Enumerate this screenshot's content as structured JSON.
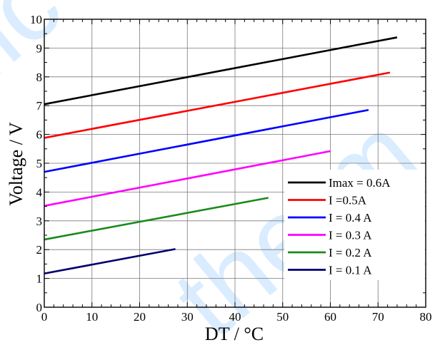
{
  "chart_data": {
    "type": "line",
    "xlabel": "DT / °C",
    "ylabel": "Voltage / V",
    "xlim": [
      0,
      80
    ],
    "ylim": [
      0,
      10
    ],
    "x_ticks": [
      "0",
      "10",
      "20",
      "30",
      "40",
      "50",
      "60",
      "70",
      "80"
    ],
    "y_ticks": [
      "0",
      "1",
      "2",
      "3",
      "4",
      "5",
      "6",
      "7",
      "8",
      "9",
      "10"
    ],
    "grid": true,
    "legend_position": "bottom-right",
    "series": [
      {
        "name": "Imax = 0.6A",
        "color": "#000000",
        "x": [
          0,
          74
        ],
        "y": [
          7.05,
          9.37
        ]
      },
      {
        "name": "I =0.5A",
        "color": "#ff0000",
        "x": [
          0,
          72.5
        ],
        "y": [
          5.88,
          8.15
        ]
      },
      {
        "name": "I = 0.4 A",
        "color": "#0000ff",
        "x": [
          0,
          68
        ],
        "y": [
          4.7,
          6.85
        ]
      },
      {
        "name": "I = 0.3 A",
        "color": "#ff00ff",
        "x": [
          0,
          60
        ],
        "y": [
          3.52,
          5.42
        ]
      },
      {
        "name": "I = 0.2 A",
        "color": "#1a8a1a",
        "x": [
          0,
          47
        ],
        "y": [
          2.35,
          3.8
        ]
      },
      {
        "name": "I = 0.1 A",
        "color": "#00006e",
        "x": [
          0,
          27.5
        ],
        "y": [
          1.17,
          2.02
        ]
      }
    ]
  },
  "watermark": {
    "text_left": "Ilc",
    "text_right": "therm",
    "color": "#1f8fff"
  }
}
